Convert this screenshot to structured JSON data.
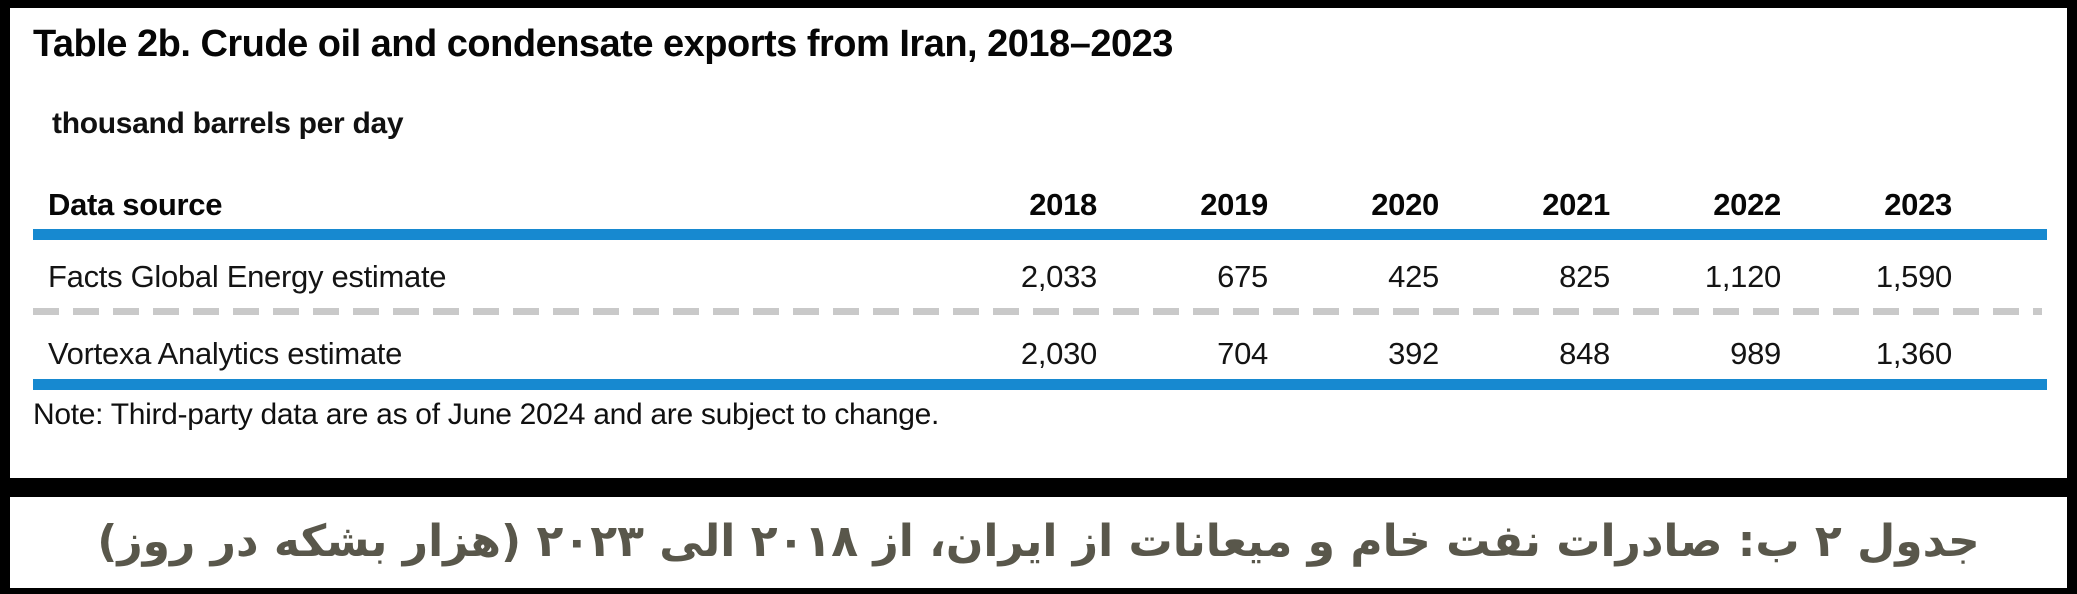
{
  "colors": {
    "accent_blue": "#1789d0",
    "frame_black": "#000000",
    "dashed_divider_gray": "#c9c9c9",
    "caption_text": "#59574b",
    "panel_background": "#ffffff"
  },
  "table": {
    "title": "Table 2b. Crude oil and condensate exports from Iran, 2018–2023",
    "subtitle": "thousand barrels per day",
    "header": {
      "label": "Data source",
      "years": [
        "2018",
        "2019",
        "2020",
        "2021",
        "2022",
        "2023"
      ]
    },
    "rows": [
      {
        "label": "Facts Global Energy estimate",
        "values": [
          "2,033",
          "675",
          "425",
          "825",
          "1,120",
          "1,590"
        ]
      },
      {
        "label": "Vortexa Analytics estimate",
        "values": [
          "2,030",
          "704",
          "392",
          "848",
          "989",
          "1,360"
        ]
      }
    ],
    "note": "Note: Third-party data are as of June 2024 and are subject to change."
  },
  "caption": {
    "text": "جدول ۲ ب: صادرات نفت خام و میعانات از ایران، از ۲۰۱۸ الی ۲۰۲۳ (هزار بشکه در روز)"
  },
  "chart_data": {
    "type": "table",
    "title": "Table 2b. Crude oil and condensate exports from Iran, 2018–2023",
    "unit": "thousand barrels per day",
    "categories": [
      "2018",
      "2019",
      "2020",
      "2021",
      "2022",
      "2023"
    ],
    "series": [
      {
        "name": "Facts Global Energy estimate",
        "values": [
          2033,
          675,
          425,
          825,
          1120,
          1590
        ]
      },
      {
        "name": "Vortexa Analytics estimate",
        "values": [
          2030,
          704,
          392,
          848,
          989,
          1360
        ]
      }
    ],
    "note": "Note: Third-party data are as of June 2024 and are subject to change."
  }
}
